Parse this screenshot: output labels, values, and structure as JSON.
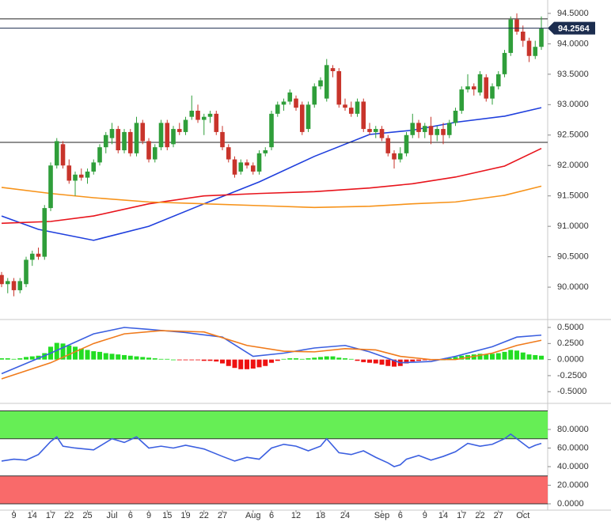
{
  "chart_data": [
    {
      "type": "candlestick",
      "xlim": [
        -0.26,
        89.03
      ],
      "ylim": [
        89.52,
        94.72
      ],
      "yticks": [
        {
          "value": 94.5,
          "label": "94.5000"
        },
        {
          "value": 94.0,
          "label": "94.0000"
        },
        {
          "value": 93.5,
          "label": "93.5000"
        },
        {
          "value": 93.0,
          "label": "93.0000"
        },
        {
          "value": 92.5,
          "label": "92.5000"
        },
        {
          "value": 92.0,
          "label": "92.0000"
        },
        {
          "value": 91.5,
          "label": "91.5000"
        },
        {
          "value": 91.0,
          "label": "91.0000"
        },
        {
          "value": 90.5,
          "label": "90.5000"
        },
        {
          "value": 90.0,
          "label": "90.0000"
        }
      ],
      "up_color": "#2f9e3a",
      "down_color": "#c8342b",
      "ohlc": [
        [
          90.2,
          90.25,
          90.0,
          90.05
        ],
        [
          90.05,
          90.15,
          89.9,
          90.1
        ],
        [
          90.1,
          90.15,
          89.85,
          89.95
        ],
        [
          89.95,
          90.15,
          89.9,
          90.1
        ],
        [
          90.05,
          90.5,
          90.0,
          90.45
        ],
        [
          90.45,
          90.6,
          90.35,
          90.55
        ],
        [
          90.55,
          90.65,
          90.45,
          90.5
        ],
        [
          90.5,
          91.35,
          90.45,
          91.3
        ],
        [
          91.3,
          92.05,
          91.25,
          92.0
        ],
        [
          92.0,
          92.45,
          91.95,
          92.4
        ],
        [
          92.35,
          92.4,
          91.95,
          92.0
        ],
        [
          92.0,
          92.1,
          91.7,
          91.75
        ],
        [
          91.75,
          91.9,
          91.5,
          91.85
        ],
        [
          91.85,
          91.95,
          91.75,
          91.8
        ],
        [
          91.8,
          91.95,
          91.7,
          91.9
        ],
        [
          91.9,
          92.1,
          91.85,
          92.05
        ],
        [
          92.05,
          92.35,
          92.0,
          92.3
        ],
        [
          92.3,
          92.55,
          92.2,
          92.5
        ],
        [
          92.45,
          92.7,
          92.35,
          92.6
        ],
        [
          92.6,
          92.65,
          92.2,
          92.25
        ],
        [
          92.25,
          92.6,
          92.2,
          92.55
        ],
        [
          92.55,
          92.6,
          92.15,
          92.2
        ],
        [
          92.2,
          92.8,
          92.15,
          92.7
        ],
        [
          92.7,
          92.75,
          92.35,
          92.4
        ],
        [
          92.4,
          92.45,
          92.05,
          92.1
        ],
        [
          92.1,
          92.35,
          92.05,
          92.3
        ],
        [
          92.3,
          92.75,
          92.25,
          92.7
        ],
        [
          92.7,
          92.75,
          92.25,
          92.3
        ],
        [
          92.35,
          92.65,
          92.3,
          92.6
        ],
        [
          92.6,
          92.7,
          92.5,
          92.55
        ],
        [
          92.55,
          92.8,
          92.5,
          92.75
        ],
        [
          92.8,
          93.15,
          92.75,
          92.9
        ],
        [
          92.9,
          93.0,
          92.7,
          92.75
        ],
        [
          92.75,
          92.85,
          92.5,
          92.8
        ],
        [
          92.8,
          92.9,
          92.7,
          92.85
        ],
        [
          92.85,
          92.9,
          92.5,
          92.55
        ],
        [
          92.55,
          92.65,
          92.25,
          92.3
        ],
        [
          92.3,
          92.35,
          92.05,
          92.1
        ],
        [
          92.1,
          92.15,
          91.8,
          91.85
        ],
        [
          91.9,
          92.1,
          91.85,
          92.05
        ],
        [
          92.05,
          92.1,
          91.95,
          92.0
        ],
        [
          92.0,
          92.05,
          91.85,
          91.9
        ],
        [
          91.9,
          92.25,
          91.85,
          92.2
        ],
        [
          92.2,
          92.3,
          92.15,
          92.25
        ],
        [
          92.3,
          92.9,
          92.25,
          92.85
        ],
        [
          92.85,
          93.05,
          92.8,
          93.0
        ],
        [
          93.0,
          93.1,
          92.9,
          93.05
        ],
        [
          93.05,
          93.25,
          93.0,
          93.2
        ],
        [
          93.1,
          93.15,
          92.9,
          92.95
        ],
        [
          93.0,
          93.05,
          92.5,
          92.55
        ],
        [
          92.6,
          93.05,
          92.55,
          93.0
        ],
        [
          93.0,
          93.35,
          92.95,
          93.3
        ],
        [
          93.3,
          93.45,
          93.25,
          93.4
        ],
        [
          93.1,
          93.75,
          93.05,
          93.65
        ],
        [
          93.6,
          93.65,
          93.45,
          93.55
        ],
        [
          93.55,
          93.6,
          92.95,
          93.0
        ],
        [
          93.0,
          93.1,
          92.9,
          92.95
        ],
        [
          92.95,
          93.05,
          92.8,
          92.85
        ],
        [
          92.85,
          93.1,
          92.8,
          93.05
        ],
        [
          93.05,
          93.1,
          92.55,
          92.6
        ],
        [
          92.6,
          92.7,
          92.5,
          92.55
        ],
        [
          92.55,
          92.65,
          92.45,
          92.6
        ],
        [
          92.6,
          92.65,
          92.4,
          92.45
        ],
        [
          92.45,
          92.5,
          92.15,
          92.2
        ],
        [
          92.2,
          92.25,
          91.95,
          92.1
        ],
        [
          92.1,
          92.3,
          92.05,
          92.2
        ],
        [
          92.2,
          92.55,
          92.15,
          92.5
        ],
        [
          92.5,
          92.85,
          92.45,
          92.7
        ],
        [
          92.7,
          92.75,
          92.45,
          92.55
        ],
        [
          92.55,
          92.7,
          92.45,
          92.65
        ],
        [
          92.65,
          92.8,
          92.35,
          92.5
        ],
        [
          92.5,
          92.65,
          92.4,
          92.6
        ],
        [
          92.6,
          92.7,
          92.35,
          92.5
        ],
        [
          92.5,
          92.75,
          92.45,
          92.7
        ],
        [
          92.7,
          92.95,
          92.65,
          92.9
        ],
        [
          92.9,
          93.3,
          92.85,
          93.25
        ],
        [
          93.25,
          93.5,
          93.2,
          93.3
        ],
        [
          93.3,
          93.35,
          93.15,
          93.25
        ],
        [
          93.2,
          93.55,
          93.15,
          93.5
        ],
        [
          93.45,
          93.5,
          93.05,
          93.1
        ],
        [
          93.1,
          93.35,
          93.0,
          93.3
        ],
        [
          93.3,
          93.55,
          93.25,
          93.5
        ],
        [
          93.5,
          93.9,
          93.45,
          93.85
        ],
        [
          93.85,
          94.45,
          93.8,
          94.4
        ],
        [
          94.4,
          94.5,
          94.15,
          94.2
        ],
        [
          94.2,
          94.3,
          93.95,
          94.05
        ],
        [
          94.05,
          94.1,
          93.7,
          93.8
        ],
        [
          93.8,
          94.05,
          93.75,
          93.95
        ],
        [
          93.95,
          94.45,
          93.9,
          94.25
        ]
      ],
      "series": [
        {
          "color": "#1f3fdd",
          "x": [
            0,
            6,
            15,
            24,
            33,
            42,
            51,
            60,
            67,
            74,
            82,
            88
          ],
          "values": [
            91.17,
            90.95,
            90.77,
            91.0,
            91.37,
            91.73,
            92.15,
            92.51,
            92.58,
            92.71,
            92.81,
            92.95
          ]
        },
        {
          "color": "#e8141c",
          "x": [
            0,
            8,
            15,
            24,
            33,
            42,
            51,
            60,
            67,
            74,
            82,
            88
          ],
          "values": [
            91.05,
            91.08,
            91.17,
            91.37,
            91.5,
            91.54,
            91.57,
            91.63,
            91.7,
            91.81,
            91.99,
            92.28
          ]
        },
        {
          "color": "#f7931a",
          "x": [
            0,
            8,
            15,
            24,
            33,
            42,
            51,
            60,
            67,
            74,
            82,
            88
          ],
          "values": [
            91.64,
            91.54,
            91.47,
            91.4,
            91.37,
            91.34,
            91.31,
            91.33,
            91.37,
            91.4,
            91.51,
            91.66
          ]
        }
      ],
      "levels": [
        94.41,
        92.38
      ],
      "current_price": {
        "value": 94.2564,
        "label": "94.2564"
      }
    },
    {
      "type": "macd",
      "xlim": [
        -0.26,
        89.03
      ],
      "ylim": [
        -0.62,
        0.574
      ],
      "yticks": [
        {
          "value": 0.5,
          "label": "0.5000"
        },
        {
          "value": 0.25,
          "label": "0.2500"
        },
        {
          "value": 0,
          "label": "0.0000"
        },
        {
          "value": -0.25,
          "label": "-0.2500"
        },
        {
          "value": -0.5,
          "label": "-0.5000"
        }
      ],
      "positive_color": "#22dd22",
      "negative_color": "#ee1111",
      "histogram": [
        0.02,
        0.02,
        0.01,
        0.02,
        0.04,
        0.05,
        0.06,
        0.1,
        0.2,
        0.26,
        0.25,
        0.22,
        0.2,
        0.17,
        0.15,
        0.13,
        0.12,
        0.1,
        0.09,
        0.08,
        0.07,
        0.06,
        0.05,
        0.04,
        0.03,
        0.02,
        0.01,
        0.01,
        0,
        -0.01,
        -0.01,
        -0.01,
        -0.01,
        -0.02,
        -0.02,
        -0.03,
        -0.06,
        -0.1,
        -0.13,
        -0.15,
        -0.15,
        -0.14,
        -0.12,
        -0.1,
        -0.05,
        -0.02,
        0.01,
        0.02,
        0.02,
        0.01,
        0.02,
        0.03,
        0.04,
        0.05,
        0.05,
        0.03,
        0.02,
        0.01,
        -0.02,
        -0.04,
        -0.05,
        -0.06,
        -0.08,
        -0.1,
        -0.11,
        -0.1,
        -0.06,
        -0.03,
        -0.02,
        -0.01,
        -0.01,
        -0.01,
        0,
        0.02,
        0.04,
        0.06,
        0.07,
        0.08,
        0.09,
        0.08,
        0.09,
        0.1,
        0.12,
        0.15,
        0.14,
        0.11,
        0.08,
        0.07,
        0.06
      ],
      "series": [
        {
          "color": "#3b5fe0",
          "x": [
            0,
            8,
            15,
            20,
            24,
            30,
            36,
            41,
            46,
            51,
            56,
            60,
            65,
            70,
            74,
            80,
            84,
            88
          ],
          "values": [
            -0.22,
            0.1,
            0.4,
            0.5,
            0.47,
            0.42,
            0.35,
            0.05,
            0.1,
            0.18,
            0.22,
            0.12,
            -0.05,
            -0.03,
            0.05,
            0.2,
            0.35,
            0.38
          ]
        },
        {
          "color": "#f07a1a",
          "x": [
            0,
            8,
            15,
            20,
            26,
            33,
            40,
            46,
            51,
            56,
            61,
            65,
            70,
            74,
            80,
            84,
            88
          ],
          "values": [
            -0.3,
            -0.05,
            0.25,
            0.4,
            0.45,
            0.43,
            0.22,
            0.13,
            0.12,
            0.17,
            0.15,
            0.05,
            0,
            0,
            0.1,
            0.22,
            0.3
          ]
        }
      ]
    },
    {
      "type": "rsi",
      "xlim": [
        -0.26,
        89.03
      ],
      "ylim": [
        -3.4,
        103.8
      ],
      "yticks": [
        {
          "value": 80,
          "label": "80.0000"
        },
        {
          "value": 60,
          "label": "60.0000"
        },
        {
          "value": 40,
          "label": "40.0000"
        },
        {
          "value": 20,
          "label": "20.0000"
        },
        {
          "value": 0,
          "label": "0.0000"
        }
      ],
      "zones": [
        {
          "from": 70,
          "to": 100,
          "color": "#66ee55"
        },
        {
          "from": 0,
          "to": 30,
          "color": "#f96a6a"
        }
      ],
      "series": [
        {
          "color": "#3b5fe0",
          "x": [
            0,
            2,
            4,
            6,
            8,
            9,
            10,
            12,
            15,
            18,
            20,
            22,
            24,
            26,
            28,
            30,
            33,
            36,
            38,
            40,
            42,
            44,
            46,
            48,
            50,
            52,
            53,
            55,
            57,
            59,
            61,
            63,
            64,
            65,
            66,
            68,
            70,
            72,
            74,
            76,
            78,
            80,
            82,
            83,
            85,
            86,
            87,
            88
          ],
          "values": [
            46,
            48,
            47,
            53,
            67,
            72,
            62,
            60,
            58,
            70,
            66,
            72,
            60,
            62,
            60,
            63,
            59,
            51,
            46,
            50,
            48,
            60,
            64,
            62,
            57,
            62,
            70,
            55,
            53,
            57,
            50,
            44,
            40,
            42,
            48,
            52,
            47,
            51,
            56,
            65,
            62,
            64,
            70,
            75,
            65,
            60,
            63,
            65
          ]
        }
      ],
      "xticks": [
        {
          "value": 2,
          "label": "9"
        },
        {
          "value": 5,
          "label": "14"
        },
        {
          "value": 8,
          "label": "17"
        },
        {
          "value": 11,
          "label": "22"
        },
        {
          "value": 14,
          "label": "25"
        },
        {
          "value": 18,
          "label": "Jul"
        },
        {
          "value": 21,
          "label": "6"
        },
        {
          "value": 24,
          "label": "9"
        },
        {
          "value": 27,
          "label": "15"
        },
        {
          "value": 30,
          "label": "19"
        },
        {
          "value": 33,
          "label": "22"
        },
        {
          "value": 36,
          "label": "27"
        },
        {
          "value": 41,
          "label": "Aug"
        },
        {
          "value": 44,
          "label": "6"
        },
        {
          "value": 48,
          "label": "12"
        },
        {
          "value": 52,
          "label": "18"
        },
        {
          "value": 56,
          "label": "24"
        },
        {
          "value": 62,
          "label": "Sep"
        },
        {
          "value": 65,
          "label": "6"
        },
        {
          "value": 69,
          "label": "9"
        },
        {
          "value": 72,
          "label": "14"
        },
        {
          "value": 75,
          "label": "17"
        },
        {
          "value": 78,
          "label": "22"
        },
        {
          "value": 81,
          "label": "27"
        },
        {
          "value": 85,
          "label": "Oct"
        }
      ]
    }
  ]
}
